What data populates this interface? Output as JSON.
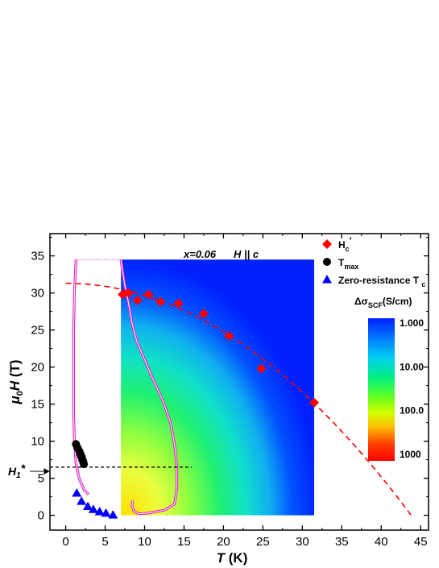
{
  "chart_data": {
    "type": "scatter",
    "title": "",
    "annotation": {
      "composition": "x=0.06",
      "field": "H || c"
    },
    "xlabel": "T (K)",
    "ylabel": "μ0H (T)",
    "xlim": [
      -2,
      46
    ],
    "ylim": [
      -2,
      38
    ],
    "xticks": [
      0,
      5,
      10,
      15,
      20,
      25,
      30,
      35,
      40,
      45
    ],
    "yticks": [
      0,
      5,
      10,
      15,
      20,
      25,
      30,
      35
    ],
    "h1_label": "H1*",
    "h1_value": 6.5,
    "legend": {
      "position": "top-right",
      "entries": [
        {
          "label": "Hc'",
          "marker": "diamond",
          "color": "#ff0000"
        },
        {
          "label": "Tmax",
          "marker": "circle",
          "color": "#000000"
        },
        {
          "label": "Zero-resistance Tc",
          "marker": "triangle",
          "color": "#0000ff"
        }
      ]
    },
    "colorbar": {
      "label": "Δσ_SCF(S/cm)",
      "ticks": [
        "1.000",
        "10.00",
        "100.0",
        "1000"
      ]
    },
    "series": [
      {
        "name": "Hc'",
        "marker": "diamond",
        "color": "#ff0000",
        "points": [
          [
            7.2,
            29.8
          ],
          [
            8.0,
            30.0
          ],
          [
            9.1,
            29.0
          ],
          [
            10.5,
            29.8
          ],
          [
            12.0,
            28.8
          ],
          [
            14.3,
            28.6
          ],
          [
            17.5,
            27.2
          ],
          [
            20.7,
            24.2
          ],
          [
            24.8,
            19.8
          ],
          [
            31.5,
            15.2
          ]
        ]
      },
      {
        "name": "Tmax",
        "marker": "circle",
        "color": "#000000",
        "points": [
          [
            1.3,
            9.6
          ],
          [
            1.45,
            9.2
          ],
          [
            1.6,
            8.9
          ],
          [
            1.75,
            8.6
          ],
          [
            1.85,
            8.3
          ],
          [
            1.95,
            8.0
          ],
          [
            2.05,
            7.8
          ],
          [
            2.1,
            7.5
          ],
          [
            2.2,
            7.3
          ],
          [
            2.25,
            7.1
          ],
          [
            2.3,
            6.9
          ]
        ]
      },
      {
        "name": "Zero-resistance Tc",
        "marker": "triangle",
        "color": "#0000ff",
        "points": [
          [
            1.4,
            3.0
          ],
          [
            2.0,
            1.9
          ],
          [
            2.8,
            1.2
          ],
          [
            3.5,
            0.8
          ],
          [
            4.3,
            0.5
          ],
          [
            5.1,
            0.3
          ],
          [
            6.0,
            0.05
          ]
        ]
      }
    ],
    "fit_curve": {
      "color": "#ff0000",
      "style": "dashed",
      "Hc0": 31.3,
      "Tc": 43.8
    },
    "contour_region": {
      "x": [
        7,
        31.5
      ],
      "y": [
        0,
        34.5
      ]
    },
    "loop_curve": {
      "color": "#e020c0",
      "points": [
        [
          1.6,
          34.5
        ],
        [
          1.4,
          30
        ],
        [
          1.3,
          25
        ],
        [
          1.3,
          20
        ],
        [
          1.3,
          14
        ],
        [
          1.4,
          10
        ],
        [
          1.6,
          7
        ],
        [
          2.0,
          5
        ],
        [
          2.6,
          3.5
        ],
        [
          3.0,
          3.0
        ],
        [
          2.6,
          3.5
        ],
        [
          2.0,
          5
        ],
        [
          1.5,
          8
        ],
        [
          1.45,
          10
        ],
        [
          1.6,
          12
        ]
      ],
      "outer": [
        [
          7.0,
          34.5
        ],
        [
          7.2,
          33
        ],
        [
          7.5,
          31
        ],
        [
          7.9,
          29
        ],
        [
          8.4,
          26
        ],
        [
          9.0,
          23.5
        ],
        [
          10.0,
          21
        ],
        [
          11.0,
          18.5
        ],
        [
          12.3,
          15.5
        ],
        [
          13.3,
          12.5
        ],
        [
          13.8,
          9.5
        ],
        [
          14.1,
          6.5
        ],
        [
          14.1,
          3.5
        ],
        [
          13.8,
          1.5
        ],
        [
          12.5,
          0.7
        ],
        [
          10.5,
          0.3
        ],
        [
          9.3,
          0.2
        ],
        [
          8.7,
          0.5
        ],
        [
          8.4,
          1.2
        ],
        [
          8.5,
          2.0
        ]
      ],
      "left": [
        [
          1.3,
          34.5
        ],
        [
          1.1,
          30
        ],
        [
          1.0,
          25
        ],
        [
          1.0,
          20
        ],
        [
          1.0,
          14
        ],
        [
          1.1,
          10
        ],
        [
          1.3,
          7
        ],
        [
          1.7,
          5
        ],
        [
          2.3,
          3.5
        ],
        [
          2.9,
          2.8
        ]
      ]
    }
  }
}
